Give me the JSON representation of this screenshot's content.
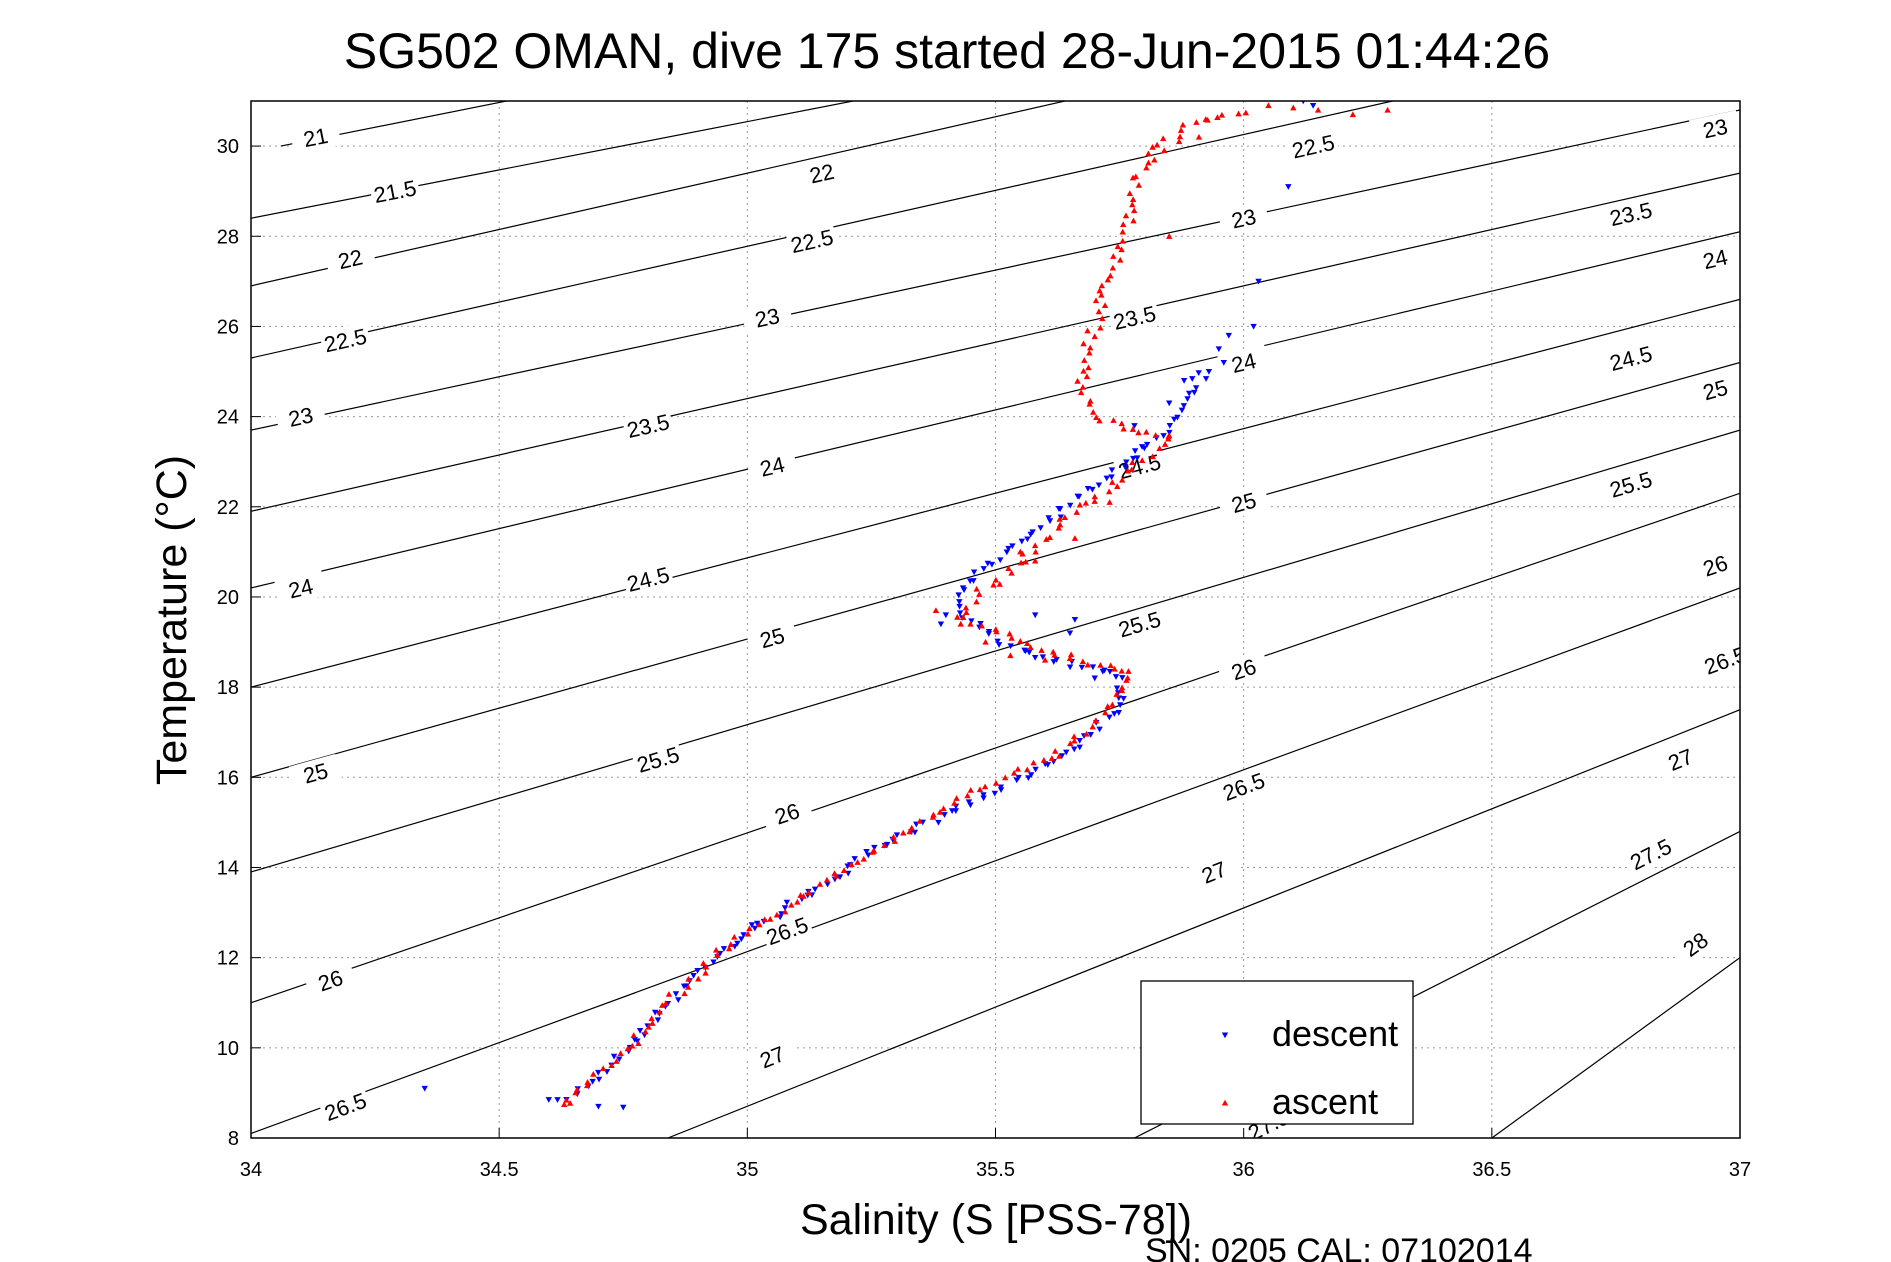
{
  "chart_data": {
    "type": "scatter",
    "title": "SG502 OMAN, dive 175 started 28-Jun-2015 01:44:26",
    "xlabel": "Salinity (S [PSS-78])",
    "ylabel": "Temperature (°C)",
    "footer": "SN: 0205  CAL: 07102014",
    "xlim": [
      34,
      37
    ],
    "ylim": [
      8,
      31
    ],
    "xticks": [
      "34",
      "34.5",
      "35",
      "35.5",
      "36",
      "36.5",
      "37"
    ],
    "yticks": [
      "8",
      "10",
      "12",
      "14",
      "16",
      "18",
      "20",
      "22",
      "24",
      "26",
      "28",
      "30"
    ],
    "grid": true,
    "legend_position": "bottom-right",
    "colors": {
      "descent": "#0000ff",
      "ascent": "#ff0000"
    },
    "contours": [
      {
        "label": "21",
        "endpoints": [
          [
            34.06,
            30.0
          ],
          [
            34.97,
            32.0
          ]
        ],
        "labels": [
          [
            34.13,
            30.2
          ]
        ]
      },
      {
        "label": "21.5",
        "endpoints": [
          [
            34.0,
            28.4
          ],
          [
            35.4,
            31.4
          ]
        ],
        "labels": [
          [
            34.29,
            29.0
          ]
        ]
      },
      {
        "label": "22",
        "endpoints": [
          [
            34.0,
            26.9
          ],
          [
            35.8,
            31.4
          ]
        ],
        "labels": [
          [
            34.2,
            27.5
          ],
          [
            35.15,
            29.4
          ]
        ]
      },
      {
        "label": "22.5",
        "endpoints": [
          [
            34.0,
            25.3
          ],
          [
            36.3,
            31.0
          ]
        ],
        "labels": [
          [
            34.19,
            25.7
          ],
          [
            35.13,
            27.9
          ],
          [
            36.14,
            30.0
          ]
        ]
      },
      {
        "label": "23",
        "endpoints": [
          [
            34.0,
            23.7
          ],
          [
            37.0,
            30.8
          ]
        ],
        "labels": [
          [
            34.1,
            24.0
          ],
          [
            35.04,
            26.2
          ],
          [
            36.0,
            28.4
          ],
          [
            36.95,
            30.4
          ]
        ]
      },
      {
        "label": "23.5",
        "endpoints": [
          [
            34.0,
            21.9
          ],
          [
            37.0,
            29.4
          ]
        ],
        "labels": [
          [
            34.8,
            23.8
          ],
          [
            35.78,
            26.2
          ],
          [
            36.78,
            28.5
          ]
        ]
      },
      {
        "label": "24",
        "endpoints": [
          [
            34.0,
            20.2
          ],
          [
            37.0,
            28.1
          ]
        ],
        "labels": [
          [
            34.1,
            20.2
          ],
          [
            35.05,
            22.9
          ],
          [
            36.0,
            25.2
          ],
          [
            36.95,
            27.5
          ]
        ]
      },
      {
        "label": "24.5",
        "endpoints": [
          [
            34.0,
            18.0
          ],
          [
            37.0,
            26.6
          ]
        ],
        "labels": [
          [
            34.8,
            20.4
          ],
          [
            35.79,
            22.9
          ],
          [
            36.78,
            25.3
          ]
        ]
      },
      {
        "label": "25",
        "endpoints": [
          [
            34.0,
            16.0
          ],
          [
            37.0,
            25.2
          ]
        ],
        "labels": [
          [
            34.13,
            16.1
          ],
          [
            35.05,
            19.1
          ],
          [
            36.0,
            22.1
          ],
          [
            36.95,
            24.6
          ]
        ]
      },
      {
        "label": "25.5",
        "endpoints": [
          [
            34.0,
            13.9
          ],
          [
            37.0,
            23.7
          ]
        ],
        "labels": [
          [
            34.82,
            16.4
          ],
          [
            35.79,
            19.4
          ],
          [
            36.78,
            22.5
          ]
        ]
      },
      {
        "label": "26",
        "endpoints": [
          [
            34.0,
            11.0
          ],
          [
            37.0,
            22.3
          ]
        ],
        "labels": [
          [
            34.16,
            11.5
          ],
          [
            35.08,
            15.2
          ],
          [
            36.0,
            18.4
          ],
          [
            36.95,
            20.7
          ]
        ]
      },
      {
        "label": "26.5",
        "endpoints": [
          [
            34.0,
            8.1
          ],
          [
            37.0,
            20.2
          ]
        ],
        "labels": [
          [
            34.19,
            8.7
          ],
          [
            35.08,
            12.6
          ],
          [
            36.0,
            15.8
          ],
          [
            36.97,
            18.6
          ]
        ]
      },
      {
        "label": "27",
        "endpoints": [
          [
            34.84,
            8.0
          ],
          [
            37.0,
            17.5
          ]
        ],
        "labels": [
          [
            35.05,
            9.8
          ],
          [
            35.94,
            13.9
          ],
          [
            36.88,
            16.4
          ]
        ]
      },
      {
        "label": "27.5",
        "endpoints": [
          [
            35.78,
            8.0
          ],
          [
            37.0,
            14.8
          ]
        ],
        "labels": [
          [
            36.05,
            8.3
          ],
          [
            36.82,
            14.3
          ]
        ]
      },
      {
        "label": "28",
        "endpoints": [
          [
            36.5,
            8.0
          ],
          [
            37.0,
            12.0
          ]
        ],
        "labels": [
          [
            36.91,
            12.3
          ]
        ]
      }
    ],
    "series": [
      {
        "name": "descent",
        "marker": "triangle-down",
        "path": [
          [
            34.63,
            8.8
          ],
          [
            34.68,
            9.2
          ],
          [
            34.76,
            10.0
          ],
          [
            34.84,
            11.0
          ],
          [
            34.93,
            12.0
          ],
          [
            35.02,
            12.7
          ],
          [
            35.15,
            13.6
          ],
          [
            35.28,
            14.5
          ],
          [
            35.4,
            15.2
          ],
          [
            35.5,
            15.7
          ],
          [
            35.62,
            16.4
          ],
          [
            35.7,
            17.0
          ],
          [
            35.76,
            17.8
          ],
          [
            35.75,
            18.3
          ],
          [
            35.65,
            18.5
          ],
          [
            35.56,
            18.8
          ],
          [
            35.48,
            19.2
          ],
          [
            35.43,
            19.6
          ],
          [
            35.42,
            20.0
          ],
          [
            35.46,
            20.5
          ],
          [
            35.54,
            21.2
          ],
          [
            35.62,
            21.8
          ],
          [
            35.7,
            22.5
          ],
          [
            35.78,
            23.1
          ],
          [
            35.84,
            23.7
          ],
          [
            35.88,
            24.4
          ],
          [
            35.92,
            25.0
          ]
        ],
        "samples": 190,
        "scatter": [
          [
            34.35,
            9.1
          ],
          [
            34.6,
            8.85
          ],
          [
            34.7,
            8.7
          ],
          [
            34.75,
            8.68
          ],
          [
            35.8,
            23.3
          ],
          [
            35.78,
            23.8
          ],
          [
            35.85,
            24.3
          ],
          [
            35.88,
            24.8
          ],
          [
            35.93,
            25.0
          ],
          [
            35.96,
            25.2
          ],
          [
            35.95,
            25.5
          ],
          [
            35.97,
            25.8
          ],
          [
            36.02,
            26.0
          ],
          [
            36.03,
            27.0
          ],
          [
            36.09,
            29.1
          ],
          [
            36.12,
            31.0
          ],
          [
            36.14,
            30.9
          ],
          [
            35.39,
            19.4
          ],
          [
            35.4,
            19.6
          ],
          [
            35.58,
            19.6
          ],
          [
            35.66,
            19.5
          ],
          [
            35.65,
            19.2
          ],
          [
            35.7,
            18.2
          ]
        ]
      },
      {
        "name": "ascent",
        "marker": "triangle-up",
        "path": [
          [
            34.62,
            8.7
          ],
          [
            34.69,
            9.3
          ],
          [
            34.77,
            10.1
          ],
          [
            34.85,
            11.1
          ],
          [
            34.94,
            12.1
          ],
          [
            35.03,
            12.8
          ],
          [
            35.16,
            13.7
          ],
          [
            35.29,
            14.6
          ],
          [
            35.41,
            15.4
          ],
          [
            35.52,
            16.0
          ],
          [
            35.63,
            16.6
          ],
          [
            35.7,
            17.2
          ],
          [
            35.74,
            17.8
          ],
          [
            35.77,
            18.3
          ],
          [
            35.7,
            18.5
          ],
          [
            35.58,
            18.9
          ],
          [
            35.5,
            19.2
          ],
          [
            35.43,
            19.6
          ],
          [
            35.47,
            20.1
          ],
          [
            35.54,
            20.7
          ],
          [
            35.6,
            21.3
          ],
          [
            35.66,
            21.9
          ],
          [
            35.74,
            22.5
          ],
          [
            35.8,
            23.1
          ],
          [
            35.86,
            23.6
          ],
          [
            35.78,
            23.7
          ],
          [
            35.7,
            24.0
          ],
          [
            35.67,
            24.6
          ],
          [
            35.68,
            25.3
          ],
          [
            35.7,
            26.0
          ],
          [
            35.72,
            26.8
          ],
          [
            35.75,
            27.6
          ],
          [
            35.77,
            28.4
          ],
          [
            35.79,
            29.3
          ],
          [
            35.82,
            30.0
          ],
          [
            35.9,
            30.5
          ],
          [
            35.96,
            30.7
          ],
          [
            36.0,
            30.7
          ]
        ],
        "samples": 230,
        "scatter": [
          [
            35.38,
            19.7
          ],
          [
            35.43,
            19.4
          ],
          [
            35.48,
            19.0
          ],
          [
            35.53,
            18.7
          ],
          [
            35.6,
            18.6
          ],
          [
            35.74,
            18.4
          ],
          [
            35.66,
            21.3
          ],
          [
            35.58,
            20.8
          ],
          [
            35.55,
            21.0
          ],
          [
            35.73,
            22.1
          ],
          [
            35.85,
            28.0
          ],
          [
            36.15,
            30.8
          ],
          [
            36.22,
            30.7
          ],
          [
            36.29,
            30.8
          ],
          [
            36.05,
            30.9
          ],
          [
            36.1,
            30.85
          ],
          [
            35.84,
            29.9
          ],
          [
            35.87,
            30.1
          ],
          [
            35.91,
            30.2
          ]
        ]
      }
    ]
  }
}
